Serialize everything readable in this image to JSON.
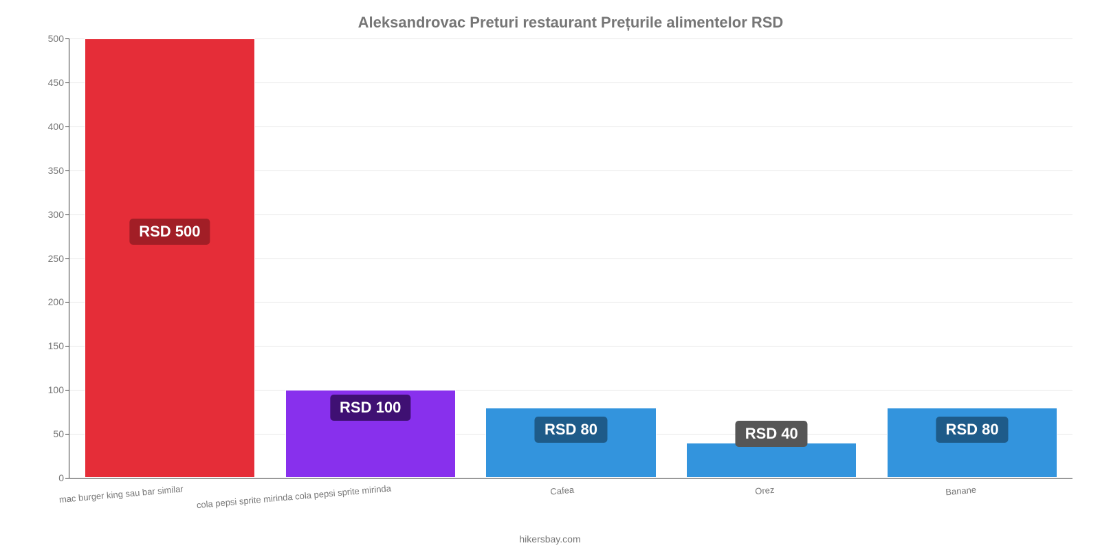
{
  "chart": {
    "type": "bar",
    "title": "Aleksandrovac Preturi restaurant Prețurile alimentelor RSD",
    "title_fontsize": 22,
    "title_color": "#767676",
    "background_color": "#ffffff",
    "grid_color": "#e6e6e6",
    "axis_color": "#333333",
    "tick_label_color": "#767676",
    "tick_label_fontsize": 14,
    "ylim": [
      0,
      500
    ],
    "ytick_step": 50,
    "yticks": [
      0,
      50,
      100,
      150,
      200,
      250,
      300,
      350,
      400,
      450,
      500
    ],
    "bar_width_pct": 85,
    "bar_border_color": "#ffffff",
    "categories": [
      "mac burger king sau bar similar",
      "cola pepsi sprite mirinda cola pepsi sprite mirinda",
      "Cafea",
      "Orez",
      "Banane"
    ],
    "values": [
      500,
      100,
      80,
      40,
      80
    ],
    "bar_colors": [
      "#e52d38",
      "#8830ed",
      "#3394dd",
      "#3394dd",
      "#3394dd"
    ],
    "value_labels": [
      "RSD 500",
      "RSD 100",
      "RSD 80",
      "RSD 40",
      "RSD 80"
    ],
    "value_label_fontsize": 22,
    "value_label_color": "#ffffff",
    "value_label_bg": [
      "#a21e26",
      "#3f1073",
      "#1e5b89",
      "#565656",
      "#1e5b89"
    ],
    "value_label_y_value": [
      280,
      80,
      55,
      50,
      55
    ],
    "credit": "hikersbay.com",
    "credit_color": "#767676",
    "credit_fontsize": 14
  }
}
